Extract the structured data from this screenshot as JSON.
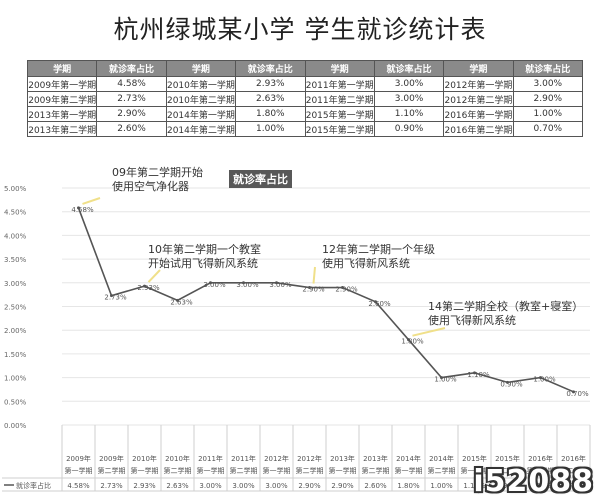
{
  "title": "杭州绿城某小学 学生就诊统计表",
  "table": {
    "headers": [
      "学期",
      "就诊率占比",
      "学期",
      "就诊率占比",
      "学期",
      "就诊率占比",
      "学期",
      "就诊率占比"
    ],
    "rows": [
      [
        "2009年第一学期",
        "4.58%",
        "2010年第一学期",
        "2.93%",
        "2011年第一学期",
        "3.00%",
        "2012年第一学期",
        "3.00%"
      ],
      [
        "2009年第二学期",
        "2.73%",
        "2010年第二学期",
        "2.63%",
        "2011年第二学期",
        "3.00%",
        "2012年第二学期",
        "2.90%"
      ],
      [
        "2013年第一学期",
        "2.90%",
        "2014年第一学期",
        "1.80%",
        "2015年第一学期",
        "1.10%",
        "2016年第一学期",
        "1.00%"
      ],
      [
        "2013年第二学期",
        "2.60%",
        "2014年第二学期",
        "1.00%",
        "2015年第二学期",
        "0.90%",
        "2016年第二学期",
        "0.70%"
      ]
    ]
  },
  "chart_data": {
    "type": "line",
    "title": "就诊率占比",
    "categories": [
      [
        "2009年",
        "第一学期"
      ],
      [
        "2009年",
        "第二学期"
      ],
      [
        "2010年",
        "第一学期"
      ],
      [
        "2010年",
        "第二学期"
      ],
      [
        "2011年",
        "第一学期"
      ],
      [
        "2011年",
        "第二学期"
      ],
      [
        "2012年",
        "第一学期"
      ],
      [
        "2012年",
        "第二学期"
      ],
      [
        "2013年",
        "第一学期"
      ],
      [
        "2013年",
        "第二学期"
      ],
      [
        "2014年",
        "第一学期"
      ],
      [
        "2014年",
        "第二学期"
      ],
      [
        "2015年",
        "第一学期"
      ],
      [
        "2015年",
        "第二学期"
      ],
      [
        "2016年",
        "第一学期"
      ],
      [
        "2016年",
        "第二学期"
      ]
    ],
    "series": [
      {
        "name": "就诊率占比",
        "values": [
          4.58,
          2.73,
          2.93,
          2.63,
          3.0,
          3.0,
          3.0,
          2.9,
          2.9,
          2.6,
          1.8,
          1.0,
          1.1,
          0.9,
          1.0,
          0.7
        ],
        "labels": [
          "4.58%",
          "2.73%",
          "2.93%",
          "2.63%",
          "3.00%",
          "3.00%",
          "3.00%",
          "2.90%",
          "2.90%",
          "2.60%",
          "1.80%",
          "1.00%",
          "1.10%",
          "0.90%",
          "1.00%",
          "0.70%"
        ],
        "color": "#555555"
      }
    ],
    "ylim": [
      0,
      5
    ],
    "yticks": [
      "0.00%",
      "0.50%",
      "1.00%",
      "1.50%",
      "2.00%",
      "2.50%",
      "3.00%",
      "3.50%",
      "4.00%",
      "4.50%",
      "5.00%"
    ],
    "table_values": [
      "4.58%",
      "2.73%",
      "2.93%",
      "2.63%",
      "3.00%",
      "3.00%",
      "3.00%",
      "2.90%",
      "2.90%",
      "2.60%",
      "1.80%",
      "1.00%",
      "1.10%",
      "0.90%",
      "1.00%",
      "0.70%"
    ],
    "grid": true,
    "legend": "bottom-left",
    "legend_label": "就诊率占比",
    "annotations": [
      {
        "lines": [
          "09年第二学期开始",
          "使用空气净化器"
        ],
        "target_index": 0
      },
      {
        "lines": [
          "10年第二学期一个教室",
          "开始试用飞得新风系统"
        ],
        "target_index": 2
      },
      {
        "lines": [
          "12年第二学期一个年级",
          "使用飞得新风系统"
        ],
        "target_index": 7
      },
      {
        "lines": [
          "14第二学期全校（教室+寝室）",
          "使用飞得新风系统"
        ],
        "target_index": 10
      }
    ]
  },
  "watermark": "i52088"
}
